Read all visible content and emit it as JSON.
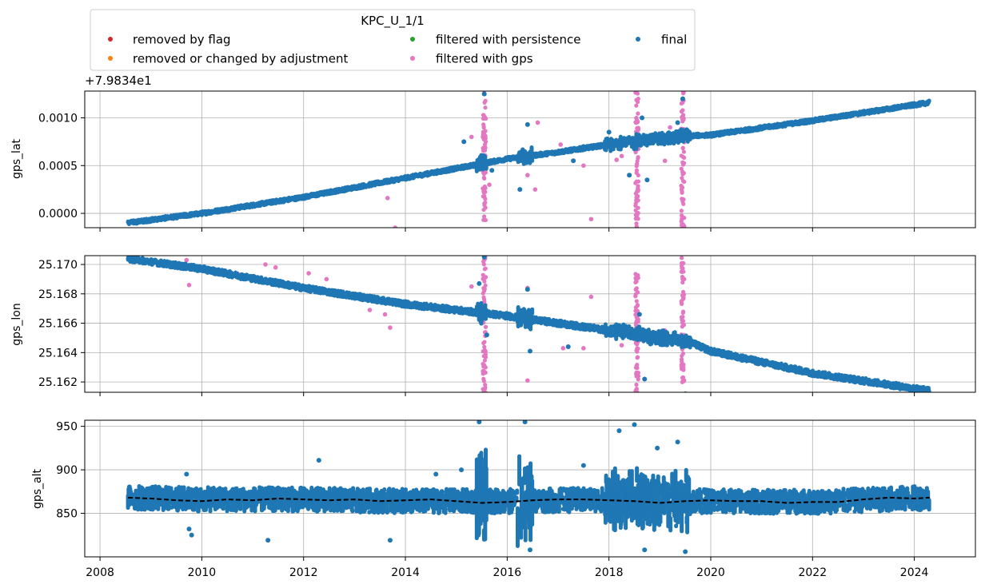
{
  "chart_data": {
    "type": "scatter",
    "legend": {
      "title": "KPC_U_1/1",
      "placement": "top-left",
      "entries": [
        {
          "label": "removed by flag",
          "color": "#d62728"
        },
        {
          "label": "removed or changed by adjustment",
          "color": "#ff7f0e"
        },
        {
          "label": "filtered with persistence",
          "color": "#2ca02c"
        },
        {
          "label": "filtered with gps",
          "color": "#e377c2"
        },
        {
          "label": "final",
          "color": "#1f77b4"
        }
      ]
    },
    "x_axis": {
      "type": "date",
      "xlim": [
        2007.7,
        2025.2
      ],
      "ticks": [
        2008,
        2010,
        2012,
        2014,
        2016,
        2018,
        2020,
        2022,
        2024
      ],
      "tick_labels": [
        "2008",
        "2010",
        "2012",
        "2014",
        "2016",
        "2018",
        "2020",
        "2022",
        "2024"
      ]
    },
    "panels": [
      {
        "ylabel": "gps_lat",
        "offset_label": "+7.9834e1",
        "ylim": [
          -0.00015,
          0.00128
        ],
        "yticks": [
          0.0,
          0.0005,
          0.001
        ],
        "ytick_labels": [
          "0.0000",
          "0.0005",
          "0.0010"
        ],
        "grid": true,
        "final_trend": [
          [
            2008.55,
            -0.0001
          ],
          [
            2010.0,
            0.0
          ],
          [
            2012.0,
            0.00017
          ],
          [
            2014.0,
            0.00037
          ],
          [
            2016.0,
            0.00057
          ],
          [
            2017.0,
            0.00064
          ],
          [
            2018.0,
            0.00072
          ],
          [
            2019.5,
            0.00081
          ],
          [
            2020.0,
            0.00082
          ],
          [
            2022.0,
            0.00097
          ],
          [
            2024.3,
            0.00116
          ]
        ],
        "final_scatter_half_width": 2e-05,
        "noisy_periods": [
          {
            "start": 2015.4,
            "end": 2015.6,
            "half_width": 0.0001
          },
          {
            "start": 2016.2,
            "end": 2016.5,
            "half_width": 0.0001
          },
          {
            "start": 2017.9,
            "end": 2019.6,
            "half_width": 8e-05
          }
        ],
        "gps_filtered_clusters": [
          {
            "x": 2015.55,
            "low": -0.0002,
            "high": 0.0013
          },
          {
            "x": 2018.55,
            "low": -0.0002,
            "high": 0.0013
          },
          {
            "x": 2019.45,
            "low": -0.0002,
            "high": 0.0013
          }
        ],
        "gps_filtered_points": [
          [
            2013.65,
            0.00016
          ],
          [
            2013.8,
            -0.00015
          ],
          [
            2015.65,
            0.0003
          ],
          [
            2016.55,
            0.00025
          ],
          [
            2016.6,
            0.00095
          ],
          [
            2017.05,
            0.00072
          ],
          [
            2017.5,
            0.0005
          ],
          [
            2017.65,
            -6e-05
          ],
          [
            2018.15,
            0.00056
          ],
          [
            2018.25,
            0.0006
          ],
          [
            2018.85,
            0.00075
          ],
          [
            2019.1,
            0.00055
          ],
          [
            2019.2,
            0.0009
          ],
          [
            2015.3,
            0.0008
          ],
          [
            2016.4,
            0.0004
          ]
        ],
        "final_outliers": [
          [
            2015.55,
            0.00125
          ],
          [
            2015.15,
            0.00075
          ],
          [
            2016.4,
            0.00093
          ],
          [
            2016.25,
            0.00025
          ],
          [
            2017.3,
            0.00055
          ],
          [
            2017.5,
            0.0007
          ],
          [
            2018.65,
            0.001
          ],
          [
            2018.75,
            0.00035
          ],
          [
            2019.45,
            0.0012
          ],
          [
            2019.35,
            0.00095
          ],
          [
            2018.4,
            0.0004
          ],
          [
            2015.7,
            0.00045
          ],
          [
            2018.0,
            0.00085
          ]
        ]
      },
      {
        "ylabel": "gps_lon",
        "ylim": [
          25.1613,
          25.1706
        ],
        "yticks": [
          25.162,
          25.164,
          25.166,
          25.168,
          25.17
        ],
        "ytick_labels": [
          "25.162",
          "25.164",
          "25.166",
          "25.168",
          "25.170"
        ],
        "grid": true,
        "final_trend": [
          [
            2008.55,
            25.1704
          ],
          [
            2010.0,
            25.1697
          ],
          [
            2012.0,
            25.1684
          ],
          [
            2014.0,
            25.1673
          ],
          [
            2016.0,
            25.1665
          ],
          [
            2018.0,
            25.1655
          ],
          [
            2019.6,
            25.1647
          ],
          [
            2020.0,
            25.1641
          ],
          [
            2022.0,
            25.1626
          ],
          [
            2024.3,
            25.1614
          ]
        ],
        "final_scatter_half_width": 0.0002,
        "noisy_periods": [
          {
            "start": 2015.4,
            "end": 2015.6,
            "half_width": 0.0008
          },
          {
            "start": 2016.2,
            "end": 2016.5,
            "half_width": 0.0008
          },
          {
            "start": 2017.9,
            "end": 2019.6,
            "half_width": 0.0006
          }
        ],
        "gps_filtered_clusters": [
          {
            "x": 2015.55,
            "low": 25.161,
            "high": 25.171
          },
          {
            "x": 2018.55,
            "low": 25.161,
            "high": 25.1695
          },
          {
            "x": 2019.45,
            "low": 25.161,
            "high": 25.171
          }
        ],
        "gps_filtered_points": [
          [
            2009.7,
            25.1703
          ],
          [
            2009.75,
            25.1686
          ],
          [
            2010.75,
            25.1693
          ],
          [
            2011.25,
            25.17
          ],
          [
            2011.45,
            25.1698
          ],
          [
            2012.1,
            25.1694
          ],
          [
            2012.45,
            25.169
          ],
          [
            2013.3,
            25.1669
          ],
          [
            2013.6,
            25.1666
          ],
          [
            2013.7,
            25.1657
          ],
          [
            2016.4,
            25.1621
          ],
          [
            2017.1,
            25.1643
          ],
          [
            2017.5,
            25.1643
          ],
          [
            2017.65,
            25.1678
          ],
          [
            2018.25,
            25.1645
          ],
          [
            2019.1,
            25.1655
          ],
          [
            2015.3,
            25.1685
          ],
          [
            2016.4,
            25.1684
          ]
        ],
        "final_outliers": [
          [
            2015.55,
            25.1705
          ],
          [
            2015.45,
            25.1687
          ],
          [
            2016.4,
            25.1683
          ],
          [
            2016.45,
            25.1641
          ],
          [
            2018.7,
            25.1622
          ],
          [
            2018.6,
            25.1666
          ],
          [
            2019.5,
            25.1612
          ],
          [
            2017.2,
            25.1644
          ],
          [
            2015.6,
            25.1652
          ]
        ]
      },
      {
        "ylabel": "gps_alt",
        "ylim": [
          800,
          957
        ],
        "yticks": [
          850,
          900,
          950
        ],
        "ytick_labels": [
          "850",
          "900",
          "950"
        ],
        "grid": true,
        "final_trend": [
          [
            2008.55,
            868
          ],
          [
            2010.0,
            866
          ],
          [
            2012.0,
            866
          ],
          [
            2014.0,
            864
          ],
          [
            2016.0,
            864
          ],
          [
            2018.0,
            866
          ],
          [
            2020.0,
            864
          ],
          [
            2022.0,
            863
          ],
          [
            2024.3,
            868
          ]
        ],
        "final_scatter_half_width": 14,
        "noisy_periods": [
          {
            "start": 2015.4,
            "end": 2015.6,
            "half_width": 60
          },
          {
            "start": 2016.2,
            "end": 2016.5,
            "half_width": 60
          },
          {
            "start": 2017.9,
            "end": 2019.6,
            "half_width": 40
          }
        ],
        "gps_filtered_clusters": [],
        "gps_filtered_points": [],
        "final_outliers": [
          [
            2009.7,
            895
          ],
          [
            2009.75,
            832
          ],
          [
            2009.8,
            825
          ],
          [
            2011.3,
            819
          ],
          [
            2012.3,
            911
          ],
          [
            2013.7,
            819
          ],
          [
            2015.1,
            900
          ],
          [
            2015.45,
            955
          ],
          [
            2016.35,
            955
          ],
          [
            2016.45,
            808
          ],
          [
            2018.5,
            952
          ],
          [
            2018.2,
            945
          ],
          [
            2018.95,
            925
          ],
          [
            2019.35,
            932
          ],
          [
            2019.5,
            806
          ],
          [
            2018.7,
            808
          ],
          [
            2017.5,
            905
          ],
          [
            2014.6,
            895
          ]
        ],
        "median_line": {
          "style": "dashed",
          "color": "#000000",
          "points": [
            [
              2008.55,
              868
            ],
            [
              2009.0,
              867
            ],
            [
              2009.5,
              865
            ],
            [
              2010.0,
              864
            ],
            [
              2010.5,
              866
            ],
            [
              2011.0,
              865
            ],
            [
              2011.5,
              867
            ],
            [
              2012.0,
              866
            ],
            [
              2012.5,
              865
            ],
            [
              2013.0,
              866
            ],
            [
              2013.5,
              864
            ],
            [
              2014.0,
              865
            ],
            [
              2014.5,
              866
            ],
            [
              2015.0,
              864
            ],
            [
              2015.5,
              862
            ],
            [
              2016.0,
              863
            ],
            [
              2016.5,
              865
            ],
            [
              2017.0,
              866
            ],
            [
              2017.5,
              866
            ],
            [
              2018.0,
              865
            ],
            [
              2018.5,
              864
            ],
            [
              2019.0,
              862
            ],
            [
              2019.5,
              864
            ],
            [
              2020.0,
              865
            ],
            [
              2020.5,
              864
            ],
            [
              2021.0,
              864
            ],
            [
              2021.5,
              862
            ],
            [
              2022.0,
              863
            ],
            [
              2022.5,
              863
            ],
            [
              2023.0,
              866
            ],
            [
              2023.5,
              868
            ],
            [
              2024.0,
              867
            ],
            [
              2024.3,
              868
            ]
          ]
        }
      }
    ]
  }
}
